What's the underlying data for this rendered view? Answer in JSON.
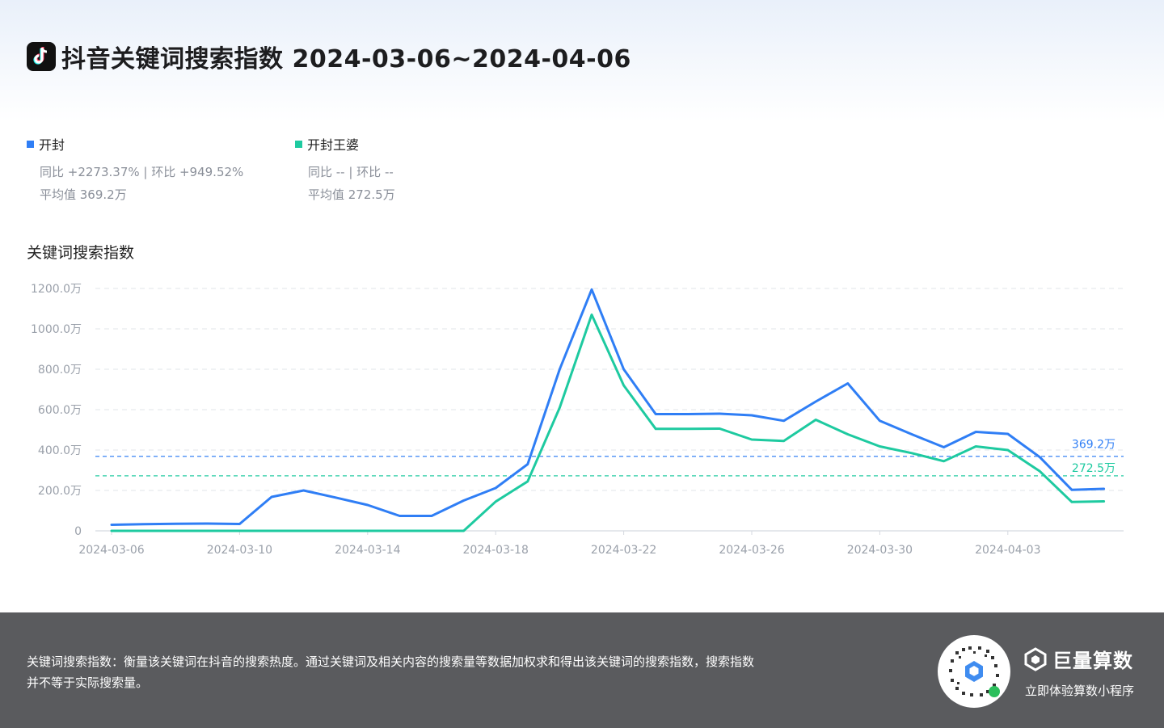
{
  "header": {
    "title": "抖音关键词搜索指数 2024-03-06~2024-04-06"
  },
  "legend": [
    {
      "name": "开封",
      "color": "#2f7ef5",
      "stat_line1": "同比 +2273.37% | 环比 +949.52%",
      "stat_line2": "平均值 369.2万"
    },
    {
      "name": "开封王婆",
      "color": "#1ecaa0",
      "stat_line1": "同比 -- | 环比 --",
      "stat_line2": "平均值 272.5万"
    }
  ],
  "chart_label": "关键词搜索指数",
  "chart_data": {
    "type": "line",
    "title": "",
    "ylabel": "关键词搜索指数",
    "ylim": [
      0,
      1200
    ],
    "yticks": [
      {
        "value": 0,
        "label": "0"
      },
      {
        "value": 200,
        "label": "200.0万"
      },
      {
        "value": 400,
        "label": "400.0万"
      },
      {
        "value": 600,
        "label": "600.0万"
      },
      {
        "value": 800,
        "label": "800.0万"
      },
      {
        "value": 1000,
        "label": "1000.0万"
      },
      {
        "value": 1200,
        "label": "1200.0万"
      }
    ],
    "xticks": [
      "2024-03-06",
      "2024-03-10",
      "2024-03-14",
      "2024-03-18",
      "2024-03-22",
      "2024-03-26",
      "2024-03-30",
      "2024-04-03"
    ],
    "x": [
      "2024-03-06",
      "2024-03-07",
      "2024-03-08",
      "2024-03-09",
      "2024-03-10",
      "2024-03-11",
      "2024-03-12",
      "2024-03-13",
      "2024-03-14",
      "2024-03-15",
      "2024-03-16",
      "2024-03-17",
      "2024-03-18",
      "2024-03-19",
      "2024-03-20",
      "2024-03-21",
      "2024-03-22",
      "2024-03-23",
      "2024-03-24",
      "2024-03-25",
      "2024-03-26",
      "2024-03-27",
      "2024-03-28",
      "2024-03-29",
      "2024-03-30",
      "2024-03-31",
      "2024-04-01",
      "2024-04-02",
      "2024-04-03",
      "2024-04-04",
      "2024-04-05",
      "2024-04-06"
    ],
    "series": [
      {
        "name": "开封",
        "color": "#2f7ef5",
        "values": [
          30,
          33,
          35,
          36,
          34,
          168,
          200,
          165,
          128,
          74,
          74,
          150,
          212,
          330,
          800,
          1195,
          800,
          578,
          578,
          580,
          572,
          545,
          640,
          730,
          545,
          478,
          414,
          490,
          480,
          365,
          203,
          208
        ],
        "average": 369.2,
        "average_label": "369.2万"
      },
      {
        "name": "开封王婆",
        "color": "#1ecaa0",
        "values": [
          0,
          0,
          0,
          0,
          0,
          0,
          0,
          0,
          0,
          0,
          0,
          0,
          145,
          245,
          610,
          1070,
          720,
          505,
          505,
          506,
          452,
          445,
          550,
          478,
          418,
          385,
          345,
          418,
          400,
          295,
          143,
          146
        ],
        "average": 272.5,
        "average_label": "272.5万"
      }
    ],
    "grid": true,
    "legend_position": "top-left"
  },
  "footer": {
    "description_line1": "关键词搜索指数：衡量该关键词在抖音的搜索热度。通过关键词及相关内容的搜索量等数据加权求和得出该关键词的搜索指数，搜索指数",
    "description_line2": "并不等于实际搜索量。",
    "brand_name": "巨量算数",
    "brand_sub": "立即体验算数小程序"
  }
}
